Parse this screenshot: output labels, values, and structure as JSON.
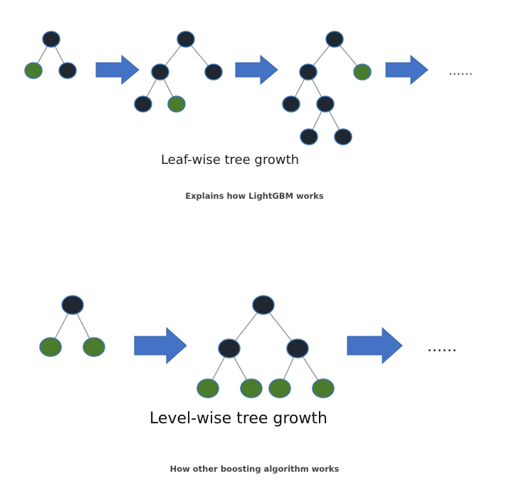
{
  "colors": {
    "dark_node": "#1f2730",
    "leaf_node": "#4a7c2c",
    "node_stroke": "#3d73b8",
    "edge": "#8c8c8c",
    "arrow_fill": "#4472c4",
    "arrow_stroke": "#3a63a8",
    "caption_text": "#444444"
  },
  "leaf_wise": {
    "title": "Leaf-wise tree growth",
    "caption": "Explains how LightGBM works",
    "ellipsis": "......"
  },
  "level_wise": {
    "title": "Level-wise tree growth",
    "caption": "How other boosting algorithm works",
    "ellipsis": "......"
  }
}
